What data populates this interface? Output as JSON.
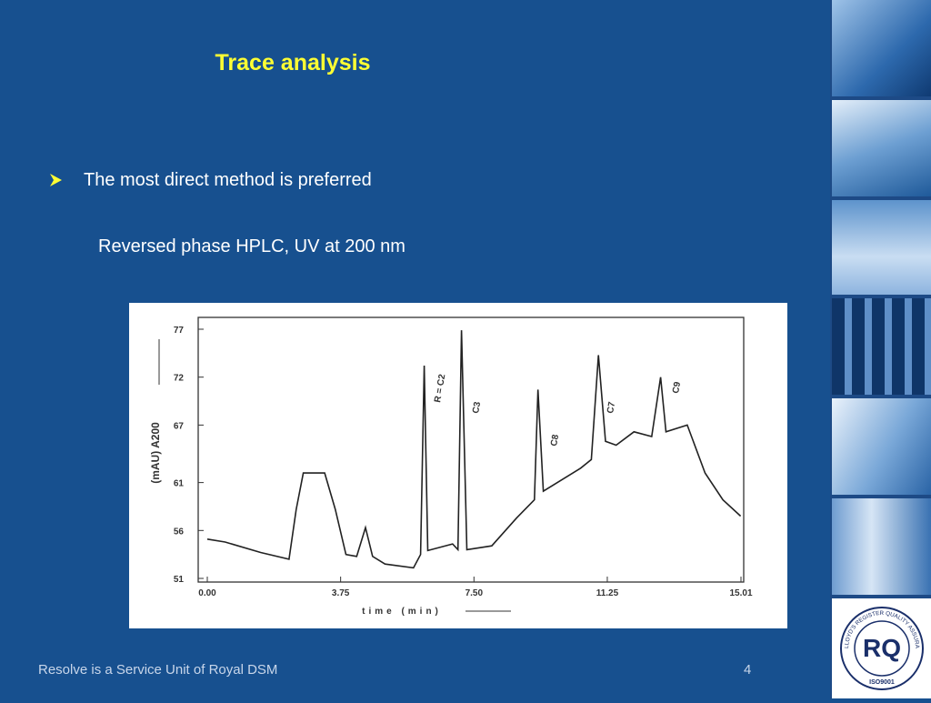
{
  "header": {
    "title": "Trace analysis"
  },
  "body": {
    "bullet": "The most direct method is preferred",
    "subtext": "Reversed phase HPLC, UV at 200 nm"
  },
  "chart_data": {
    "type": "line",
    "x_label": "time (min)",
    "y_label": "(mAU) A200",
    "x": [
      0,
      0.5,
      1.5,
      2.3,
      2.5,
      2.7,
      3.3,
      3.6,
      3.9,
      4.2,
      4.45,
      4.65,
      5.0,
      5.8,
      6.0,
      6.1,
      6.2,
      6.9,
      7.05,
      7.15,
      7.3,
      8.0,
      8.7,
      9.2,
      9.3,
      9.45,
      10.5,
      10.8,
      11.0,
      11.2,
      11.5,
      12.0,
      12.5,
      12.75,
      12.9,
      13.5,
      14.0,
      14.5,
      15.0
    ],
    "values": [
      55.1,
      54.8,
      53.7,
      53.0,
      58.2,
      62.0,
      62.0,
      58.2,
      53.5,
      53.3,
      56.3,
      53.3,
      52.5,
      52.1,
      53.5,
      73.2,
      53.9,
      54.6,
      54.0,
      76.9,
      54.0,
      54.4,
      57.3,
      59.2,
      70.7,
      60.1,
      62.5,
      63.4,
      74.3,
      65.3,
      64.9,
      66.3,
      65.8,
      72.0,
      66.3,
      67.0,
      62.0,
      59.2,
      57.5
    ],
    "color": "#222222",
    "xlim": [
      0,
      15.01
    ],
    "ylim": [
      51,
      77
    ],
    "xticks": [
      {
        "value": 0,
        "label": "0.00"
      },
      {
        "value": 3.75,
        "label": "3.75"
      },
      {
        "value": 7.5,
        "label": "7.50"
      },
      {
        "value": 11.25,
        "label": "11.25"
      },
      {
        "value": 15.01,
        "label": "15.01"
      }
    ],
    "yticks": [
      51,
      56,
      61,
      67,
      72,
      77
    ],
    "annotations": [
      "R = C2",
      "C3",
      "C8",
      "C7",
      "C9"
    ]
  },
  "footer": {
    "text": "Resolve is a Service Unit of Royal DSM",
    "page": 4
  },
  "logo": {
    "ring": "LLOYD'S REGISTER QUALITY ASSURANCE",
    "standard": "ISO9001"
  }
}
